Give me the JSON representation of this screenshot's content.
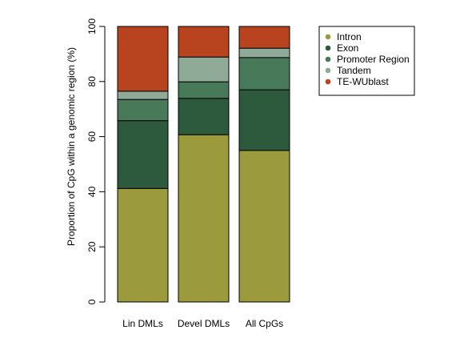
{
  "chart_data": {
    "type": "bar",
    "stacked": true,
    "categories": [
      "Lin DMLs",
      "Devel DMLs",
      "All CpGs"
    ],
    "series": [
      {
        "name": "Intron",
        "color": "#9b9a3c",
        "values": [
          41.2,
          60.7,
          55.0
        ]
      },
      {
        "name": "Exon",
        "color": "#2d5a3c",
        "values": [
          24.6,
          13.2,
          22.0
        ]
      },
      {
        "name": "Promoter Region",
        "color": "#487a5a",
        "values": [
          7.7,
          6.0,
          11.7
        ]
      },
      {
        "name": "Tandem",
        "color": "#8fab98",
        "values": [
          3.0,
          9.0,
          3.4
        ]
      },
      {
        "name": "TE-WUblast",
        "color": "#b8431f",
        "values": [
          23.5,
          11.1,
          7.9
        ]
      }
    ],
    "ylabel": "Proportion of CpG within a genomic region (%)",
    "xlabel": "",
    "title": "",
    "ylim": [
      0,
      100
    ],
    "yticks": [
      0,
      20,
      40,
      60,
      80,
      100
    ],
    "grid": false,
    "legend_position": "top-right",
    "legend_order": [
      "Intron",
      "Exon",
      "Promoter Region",
      "Tandem",
      "TE-WUblast"
    ]
  }
}
